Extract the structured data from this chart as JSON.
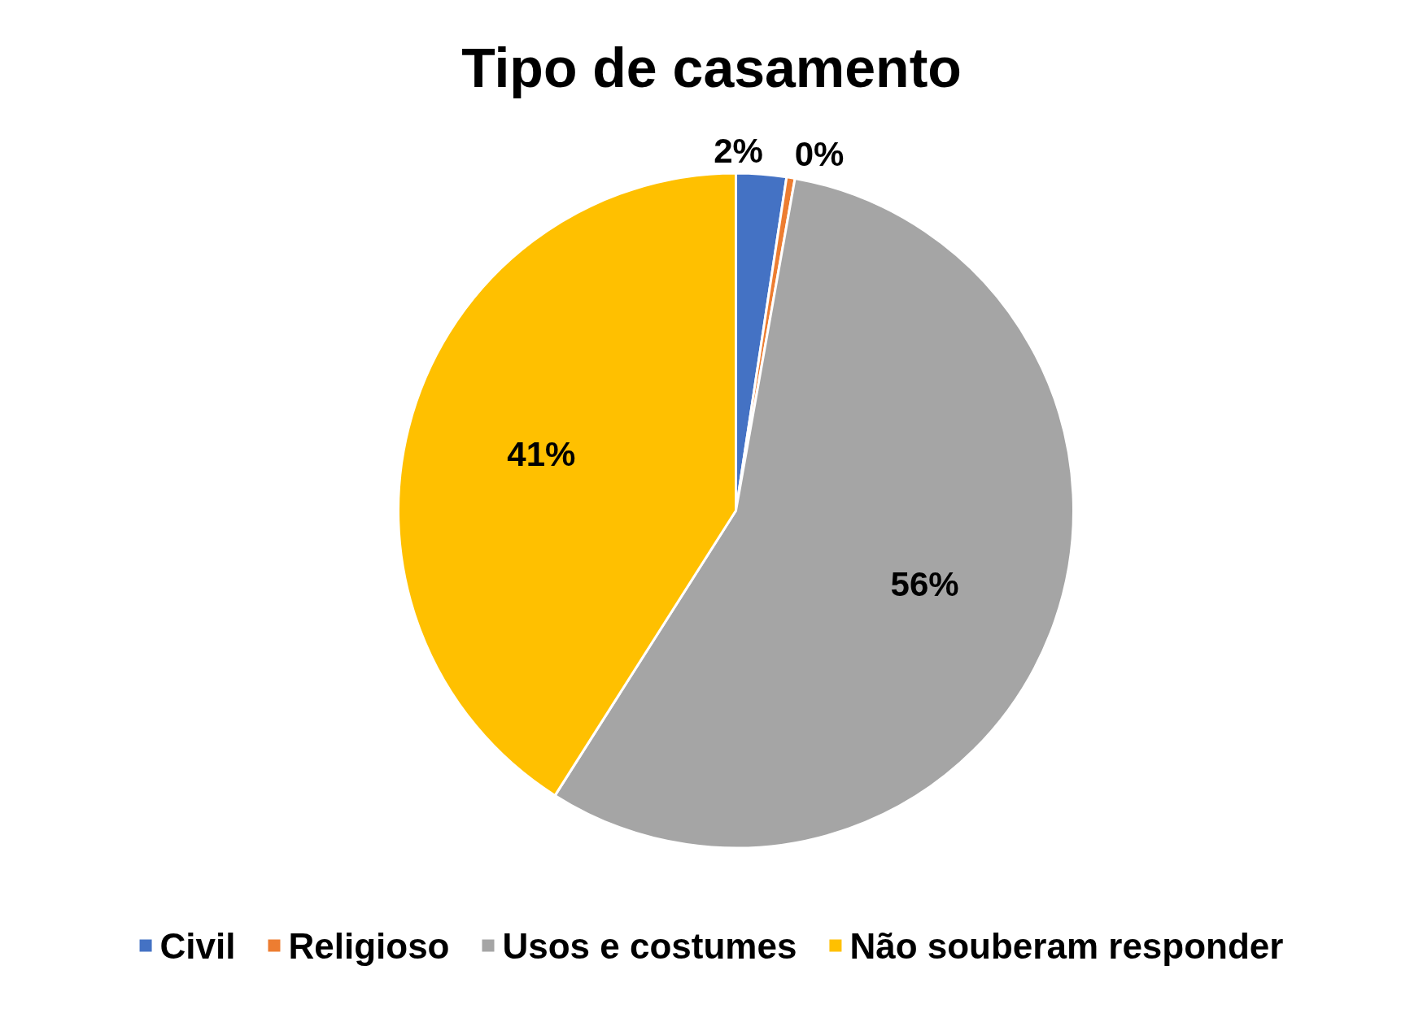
{
  "chart_data": {
    "type": "pie",
    "title": "Tipo de casamento",
    "categories": [
      "Civil",
      "Religioso",
      "Usos e costumes",
      "Não souberam responder"
    ],
    "values": [
      2.4,
      0.4,
      56.2,
      41.0
    ],
    "colors": [
      "#4472c4",
      "#ed7d31",
      "#a5a5a5",
      "#ffc000"
    ],
    "value_labels": [
      "2%",
      "0%",
      "56%",
      "41%"
    ],
    "legend": "bottom"
  }
}
